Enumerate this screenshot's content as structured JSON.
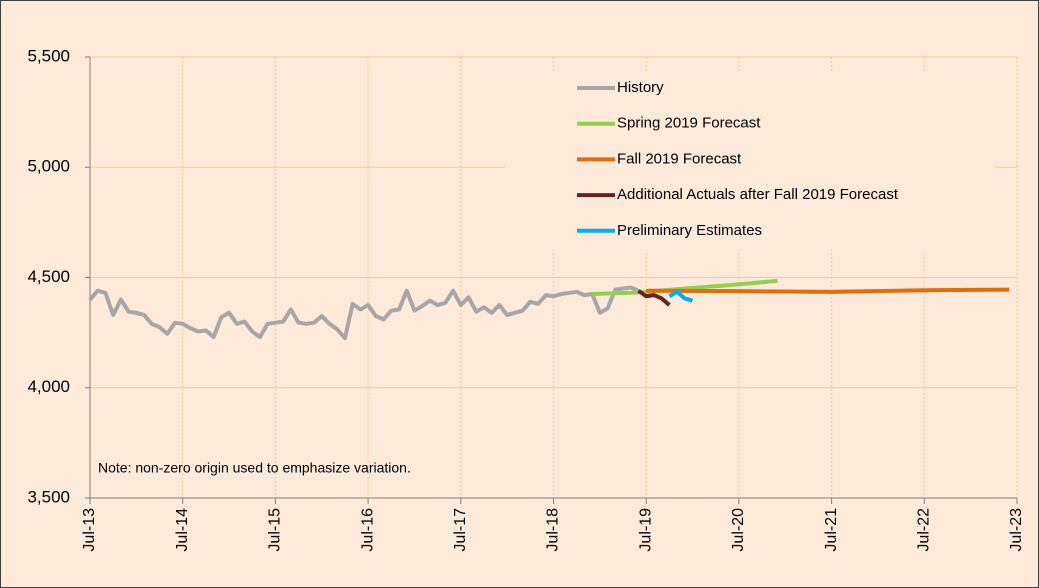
{
  "chart_data": {
    "type": "line",
    "note": "Note: non-zero origin used to emphasize variation.",
    "ylim": [
      3500,
      5500
    ],
    "yticks": [
      {
        "value": 3500,
        "label": "3,500"
      },
      {
        "value": 4000,
        "label": "4,000"
      },
      {
        "value": 4500,
        "label": "4,500"
      },
      {
        "value": 5000,
        "label": "5,000"
      },
      {
        "value": 5500,
        "label": "5,500"
      }
    ],
    "xlim": [
      "2013-07",
      "2023-07"
    ],
    "xticks": [
      {
        "value": "2013-07",
        "label": "Jul-13"
      },
      {
        "value": "2014-07",
        "label": "Jul-14"
      },
      {
        "value": "2015-07",
        "label": "Jul-15"
      },
      {
        "value": "2016-07",
        "label": "Jul-16"
      },
      {
        "value": "2017-07",
        "label": "Jul-17"
      },
      {
        "value": "2018-07",
        "label": "Jul-18"
      },
      {
        "value": "2019-07",
        "label": "Jul-19"
      },
      {
        "value": "2020-07",
        "label": "Jul-20"
      },
      {
        "value": "2021-07",
        "label": "Jul-21"
      },
      {
        "value": "2022-07",
        "label": "Jul-22"
      },
      {
        "value": "2023-07",
        "label": "Jul-23"
      }
    ],
    "grid": true,
    "legend": "upper right",
    "series": [
      {
        "name": "History",
        "color": "#a6a6a6",
        "x": [
          "2013-07",
          "2013-08",
          "2013-09",
          "2013-10",
          "2013-11",
          "2013-12",
          "2014-01",
          "2014-02",
          "2014-03",
          "2014-04",
          "2014-05",
          "2014-06",
          "2014-07",
          "2014-08",
          "2014-09",
          "2014-10",
          "2014-11",
          "2014-12",
          "2015-01",
          "2015-02",
          "2015-03",
          "2015-04",
          "2015-05",
          "2015-06",
          "2015-07",
          "2015-08",
          "2015-09",
          "2015-10",
          "2015-11",
          "2015-12",
          "2016-01",
          "2016-02",
          "2016-03",
          "2016-04",
          "2016-05",
          "2016-06",
          "2016-07",
          "2016-08",
          "2016-09",
          "2016-10",
          "2016-11",
          "2016-12",
          "2017-01",
          "2017-02",
          "2017-03",
          "2017-04",
          "2017-05",
          "2017-06",
          "2017-07",
          "2017-08",
          "2017-09",
          "2017-10",
          "2017-11",
          "2017-12",
          "2018-01",
          "2018-02",
          "2018-03",
          "2018-04",
          "2018-05",
          "2018-06",
          "2018-07",
          "2018-08",
          "2018-09",
          "2018-10",
          "2018-11",
          "2018-12",
          "2019-01",
          "2019-02",
          "2019-03",
          "2019-04",
          "2019-05",
          "2019-06"
        ],
        "values": [
          4400,
          4440,
          4430,
          4330,
          4400,
          4345,
          4340,
          4330,
          4290,
          4275,
          4245,
          4295,
          4290,
          4270,
          4255,
          4260,
          4230,
          4320,
          4340,
          4290,
          4300,
          4255,
          4230,
          4290,
          4295,
          4300,
          4355,
          4295,
          4290,
          4295,
          4325,
          4290,
          4265,
          4225,
          4380,
          4355,
          4375,
          4325,
          4310,
          4350,
          4355,
          4440,
          4350,
          4370,
          4395,
          4375,
          4385,
          4440,
          4375,
          4410,
          4345,
          4365,
          4340,
          4375,
          4330,
          4340,
          4350,
          4390,
          4380,
          4420,
          4415,
          4425,
          4430,
          4435,
          4420,
          4425,
          4340,
          4360,
          4445,
          4450,
          4455,
          4440
        ]
      },
      {
        "name": "Spring 2019 Forecast",
        "color": "#92d050",
        "x": [
          "2018-12",
          "2019-06",
          "2019-12",
          "2020-06",
          "2020-12"
        ],
        "values": [
          4425,
          4432,
          4450,
          4466,
          4485
        ]
      },
      {
        "name": "Fall 2019 Forecast",
        "color": "#e46c0a",
        "x": [
          "2019-07",
          "2020-07",
          "2021-07",
          "2022-07",
          "2023-06"
        ],
        "values": [
          4440,
          4438,
          4435,
          4442,
          4445
        ]
      },
      {
        "name": "Additional Actuals after Fall 2019 Forecast",
        "color": "#632523",
        "x": [
          "2019-06",
          "2019-07",
          "2019-08",
          "2019-09",
          "2019-10"
        ],
        "values": [
          4440,
          4415,
          4420,
          4405,
          4375
        ]
      },
      {
        "name": "Preliminary Estimates",
        "color": "#00b0f0",
        "x": [
          "2019-10",
          "2019-11",
          "2019-12",
          "2020-01"
        ],
        "values": [
          4415,
          4435,
          4405,
          4395
        ]
      }
    ]
  }
}
